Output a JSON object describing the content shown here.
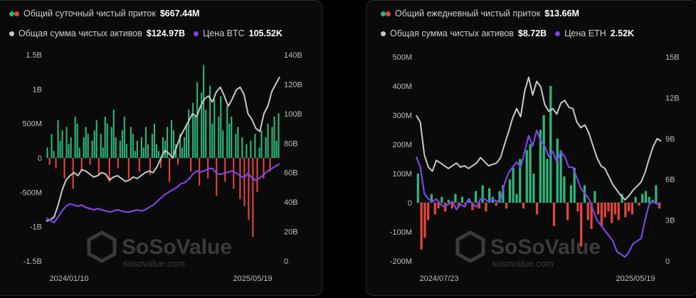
{
  "colors": {
    "inflow": "#2fb47a",
    "outflow": "#e0453e",
    "assets": "#c9c9c9",
    "price": "#7b45e6",
    "axis": "#bdbdbd"
  },
  "watermark": {
    "logo": "SoSoValue",
    "url": "sosovalue.com"
  },
  "chart_data": [
    {
      "type": "bar",
      "legend": {
        "daily_label": "Общий суточный чистый приток",
        "daily_value": "$667.44M",
        "assets_label": "Общая сумма чистых активов",
        "assets_value": "$124.97B",
        "price_label": "Цена BTC",
        "price_value": "105.52K"
      },
      "x_start": "2024/01/10",
      "x_end": "2025/05/19",
      "y_left_ticks": [
        "1.5B",
        "1B",
        "500M",
        "0",
        "-500M",
        "-1B",
        "-1.5B"
      ],
      "y_left_range": [
        -1.5,
        1.5
      ],
      "y_right_ticks": [
        "140B",
        "120B",
        "100B",
        "80B",
        "60B",
        "40B",
        "20B",
        "0"
      ],
      "y_right_range": [
        0,
        140
      ],
      "series": [
        {
          "name": "Общий суточный чистый приток",
          "type": "bar",
          "unit": "B",
          "values": [
            0.15,
            -0.1,
            0.35,
            0.1,
            -0.15,
            0.55,
            0.25,
            0.4,
            -0.3,
            0.45,
            0.2,
            0.3,
            -0.45,
            0.6,
            0.5,
            0.15,
            -0.2,
            0.3,
            0.45,
            0.35,
            -0.1,
            0.25,
            0.4,
            0.55,
            -0.25,
            0.35,
            0.15,
            0.6,
            0.5,
            -0.35,
            0.45,
            0.7,
            0.3,
            -0.15,
            0.25,
            0.4,
            0.6,
            0.2,
            -0.3,
            0.45,
            0.35,
            0.1,
            0.25,
            -0.2,
            0.3,
            0.15,
            0.45,
            0.2,
            -0.25,
            0.35,
            0.5,
            0.2,
            0.1,
            -0.15,
            0.3,
            0.25,
            0.45,
            -0.35,
            0.55,
            0.4,
            0.2,
            -0.1,
            0.35,
            0.15,
            0.3,
            0.5,
            0.7,
            -0.2,
            0.8,
            0.6,
            1.1,
            -0.4,
            0.95,
            1.35,
            0.7,
            -0.3,
            1.05,
            0.5,
            0.85,
            -0.55,
            0.6,
            0.9,
            0.4,
            -0.35,
            0.75,
            0.5,
            0.6,
            -0.45,
            0.35,
            0.45,
            -0.6,
            0.3,
            -0.7,
            0.2,
            -0.9,
            0.25,
            -1.15,
            0.35,
            -0.5,
            0.15,
            0.4,
            -0.3,
            0.3,
            0.5,
            -0.2,
            0.45,
            0.6,
            0.25,
            0.65
          ]
        },
        {
          "name": "Общая сумма чистых активов",
          "type": "line",
          "unit": "B",
          "values": [
            27,
            28,
            30,
            38,
            48,
            55,
            58,
            60,
            58,
            62,
            61,
            59,
            57,
            58,
            60,
            59,
            55,
            57,
            58,
            56,
            54,
            55,
            57,
            56,
            58,
            60,
            61,
            60,
            64,
            70,
            75,
            73,
            70,
            78,
            85,
            90,
            95,
            100,
            98,
            105,
            110,
            112,
            108,
            115,
            118,
            112,
            105,
            110,
            116,
            118,
            113,
            100,
            96,
            90,
            88,
            100,
            105,
            115,
            120,
            125
          ]
        },
        {
          "name": "Цена BTC",
          "type": "line",
          "unit": "K",
          "values": [
            46,
            44,
            42,
            47,
            52,
            56,
            58,
            57,
            56,
            57,
            55,
            54,
            53,
            54,
            53,
            52,
            51,
            52,
            53,
            52,
            51,
            51,
            52,
            53,
            52,
            53,
            55,
            57,
            60,
            63,
            66,
            68,
            70,
            72,
            75,
            76,
            79,
            83,
            86,
            85,
            86,
            88,
            88,
            84,
            83,
            84,
            85,
            86,
            84,
            82,
            80,
            84,
            80,
            78,
            80,
            83,
            86,
            88,
            90,
            92
          ]
        }
      ]
    },
    {
      "type": "bar",
      "legend": {
        "daily_label": "Общий ежедневный чистый приток",
        "daily_value": "$13.66M",
        "assets_label": "Общая сумма чистых активов",
        "assets_value": "$8.72B",
        "price_label": "Цена ETH",
        "price_value": "2.52K"
      },
      "x_start": "2024/07/23",
      "x_end": "2025/05/19",
      "y_left_ticks": [
        "500M",
        "400M",
        "300M",
        "200M",
        "100M",
        "0",
        "-100M",
        "-200M"
      ],
      "y_left_range": [
        -200,
        500
      ],
      "y_right_ticks": [
        "15B",
        "12B",
        "9B",
        "6B",
        "3B",
        "0"
      ],
      "y_right_range": [
        0,
        15
      ],
      "series": [
        {
          "name": "Общий ежедневный чистый приток",
          "type": "bar",
          "unit": "M",
          "values": [
            100,
            -160,
            -120,
            -60,
            30,
            -40,
            -20,
            20,
            -30,
            10,
            -20,
            30,
            -15,
            20,
            -10,
            15,
            -25,
            40,
            -20,
            60,
            -30,
            50,
            20,
            -10,
            40,
            60,
            -20,
            80,
            120,
            30,
            150,
            -20,
            180,
            200,
            100,
            -40,
            250,
            300,
            150,
            400,
            -80,
            220,
            180,
            90,
            -60,
            60,
            120,
            -30,
            -150,
            60,
            -60,
            -90,
            40,
            -40,
            -80,
            -50,
            -30,
            -70,
            -40,
            -60,
            30,
            -50,
            -30,
            -40,
            20,
            -10,
            30,
            40,
            20,
            10,
            60,
            -20
          ]
        },
        {
          "name": "Общая сумма чистых активов",
          "type": "line",
          "unit": "B",
          "values": [
            10.7,
            10.2,
            7.8,
            6.9,
            6.6,
            7.4,
            7.2,
            7.0,
            6.8,
            7.0,
            7.2,
            6.9,
            7.0,
            6.8,
            7.0,
            7.2,
            7.6,
            7.3,
            7.0,
            7.1,
            7.2,
            7.6,
            8.6,
            9.5,
            10.5,
            11.2,
            10.6,
            12.5,
            13.5,
            12.2,
            13.2,
            12.8,
            11.5,
            11.0,
            11.2,
            10.8,
            11.6,
            11.8,
            11.3,
            11.2,
            10.2,
            9.8,
            10.0,
            9.4,
            8.5,
            7.6,
            7.0,
            6.8,
            6.2,
            5.6,
            5.2,
            4.8,
            4.5,
            4.8,
            5.2,
            5.5,
            5.8,
            6.5,
            7.5,
            8.4,
            9.0,
            8.8
          ]
        },
        {
          "name": "Цена ETH",
          "type": "line",
          "unit": "K",
          "values": [
            3.4,
            3.2,
            2.7,
            2.6,
            2.55,
            2.6,
            2.5,
            2.45,
            2.5,
            2.55,
            2.4,
            2.5,
            2.45,
            2.6,
            2.5,
            2.45,
            2.6,
            2.6,
            2.55,
            2.6,
            2.55,
            2.6,
            2.9,
            3.1,
            3.2,
            3.3,
            3.2,
            3.5,
            3.8,
            3.6,
            3.9,
            3.7,
            3.6,
            3.4,
            3.5,
            3.3,
            3.5,
            3.4,
            3.2,
            3.2,
            3.0,
            2.8,
            2.7,
            2.6,
            2.4,
            2.2,
            2.1,
            2.0,
            1.9,
            1.8,
            1.6,
            1.55,
            1.5,
            1.6,
            1.75,
            1.8,
            1.85,
            2.2,
            2.5,
            2.55,
            2.5,
            2.5
          ]
        }
      ]
    }
  ]
}
